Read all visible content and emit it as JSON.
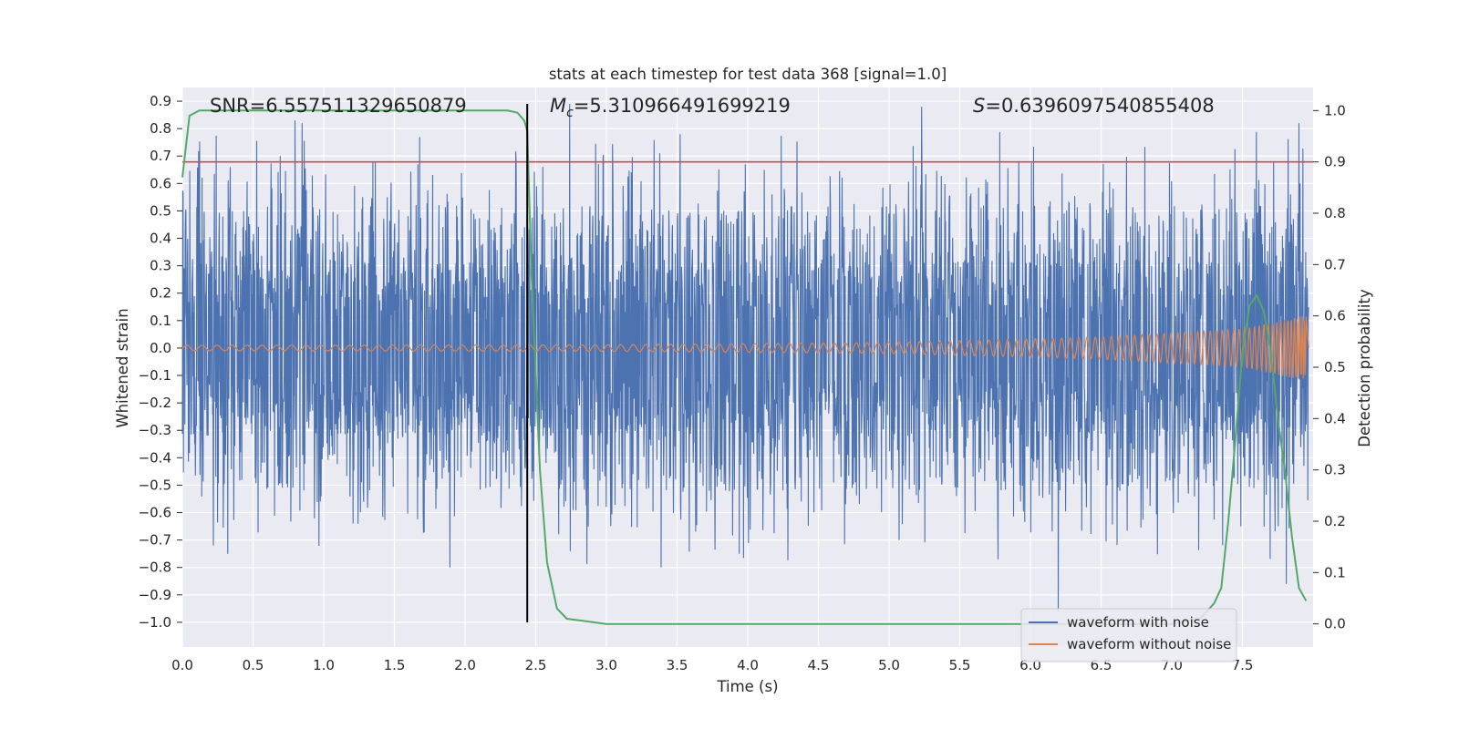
{
  "chart_data": {
    "type": "line",
    "title": "stats at each timestep for test data 368 [signal=1.0]",
    "xlabel": "Time (s)",
    "ylabel": "Whitened strain",
    "y2label": "Detection probability",
    "xlim": [
      0.0,
      8.0
    ],
    "ylim": [
      -1.09,
      0.95
    ],
    "y2lim": [
      -0.045,
      1.045
    ],
    "xticks": [
      "0.0",
      "0.5",
      "1.0",
      "1.5",
      "2.0",
      "2.5",
      "3.0",
      "3.5",
      "4.0",
      "4.5",
      "5.0",
      "5.5",
      "6.0",
      "6.5",
      "7.0",
      "7.5"
    ],
    "yticks": [
      "0.9",
      "0.8",
      "0.7",
      "0.6",
      "0.5",
      "0.4",
      "0.3",
      "0.2",
      "0.1",
      "0.0",
      "−0.1",
      "−0.2",
      "−0.3",
      "−0.4",
      "−0.5",
      "−0.6",
      "−0.7",
      "−0.8",
      "−0.9",
      "−1.0"
    ],
    "y2ticks": [
      "1.0",
      "0.9",
      "0.8",
      "0.7",
      "0.6",
      "0.5",
      "0.4",
      "0.3",
      "0.2",
      "0.1",
      "0.0"
    ],
    "annotations": {
      "snr": "SNR=6.557511329650879",
      "mc_symbol": "M",
      "mc_sub": "c",
      "mc_value": "=5.310966491699219",
      "s_symbol": "S",
      "s_value": "=0.6396097540855408"
    },
    "threshold_line": {
      "axis": "y2",
      "value": 0.9,
      "color": "#c44e52"
    },
    "vertical_line": {
      "x": 2.44,
      "y_from": -1.0,
      "y_to": 0.89,
      "color": "#000000"
    },
    "series": [
      {
        "name": "waveform with noise",
        "color": "#4c72b0",
        "description": "noisy whitened strain; dense band ~-0.25..0.32, spikes up to ~0.88 and down to ~-0.96",
        "peaks_pos": [
          [
            0.8,
            0.83
          ],
          [
            0.85,
            0.82
          ],
          [
            2.75,
            0.89
          ],
          [
            5.25,
            0.88
          ],
          [
            7.93,
            0.82
          ]
        ],
        "peaks_neg": [
          [
            0.22,
            -0.72
          ],
          [
            1.9,
            -0.8
          ],
          [
            3.4,
            -0.8
          ],
          [
            6.22,
            -0.96
          ],
          [
            7.84,
            -0.86
          ]
        ]
      },
      {
        "name": "waveform without noise",
        "color": "#dd8452",
        "description": "chirp signal, amplitude growing from ~0.01 to ~0.12 near t=7.95",
        "amplitude_envelope": [
          [
            0.0,
            0.01
          ],
          [
            3.0,
            0.012
          ],
          [
            5.0,
            0.02
          ],
          [
            6.5,
            0.04
          ],
          [
            7.5,
            0.07
          ],
          [
            7.95,
            0.12
          ]
        ]
      },
      {
        "name": "detection probability",
        "axis": "y2",
        "color": "#55a868",
        "x": [
          0.0,
          0.05,
          0.12,
          0.2,
          0.5,
          1.0,
          1.5,
          2.0,
          2.3,
          2.37,
          2.42,
          2.44,
          2.47,
          2.53,
          2.58,
          2.65,
          2.72,
          3.0,
          4.0,
          5.0,
          5.5,
          6.0,
          6.5,
          7.0,
          7.2,
          7.3,
          7.35,
          7.4,
          7.45,
          7.5,
          7.55,
          7.6,
          7.65,
          7.7,
          7.75,
          7.8,
          7.85,
          7.9,
          7.95
        ],
        "y": [
          0.87,
          0.99,
          1.0,
          1.0,
          1.0,
          1.0,
          1.0,
          1.0,
          1.0,
          0.996,
          0.98,
          0.96,
          0.68,
          0.3,
          0.12,
          0.03,
          0.01,
          0.0,
          0.0,
          0.0,
          0.0,
          0.0,
          0.0,
          0.0,
          0.01,
          0.04,
          0.07,
          0.2,
          0.36,
          0.53,
          0.62,
          0.64,
          0.61,
          0.53,
          0.4,
          0.3,
          0.17,
          0.07,
          0.045
        ]
      }
    ],
    "legend": {
      "position": "lower-right",
      "entries": [
        {
          "label": "waveform with noise",
          "color": "#4c72b0"
        },
        {
          "label": "waveform without noise",
          "color": "#dd8452"
        }
      ]
    }
  }
}
